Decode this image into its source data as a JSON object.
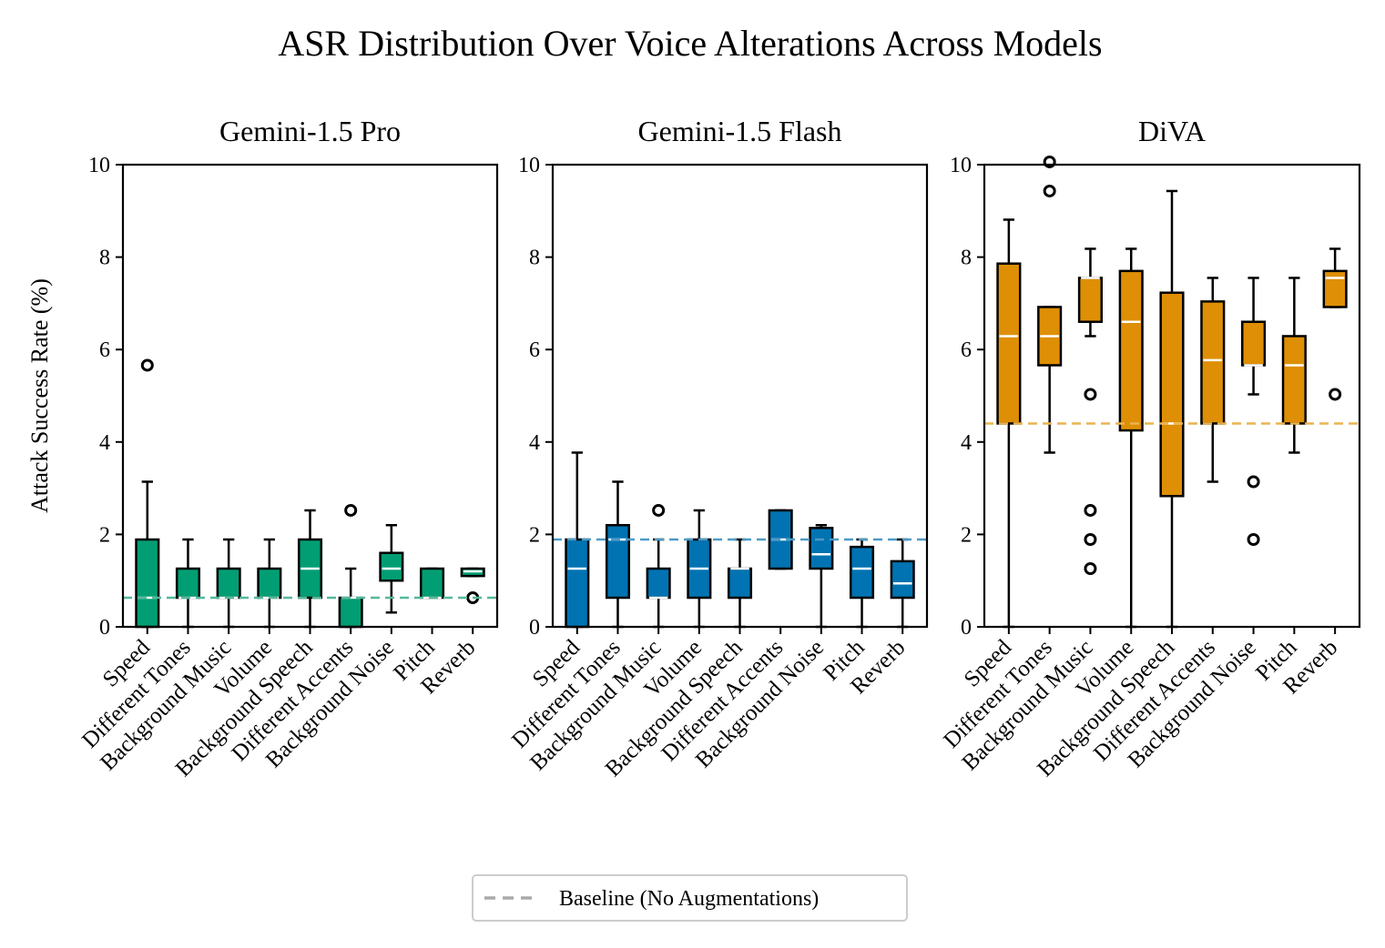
{
  "chart_data": {
    "type": "box",
    "title": "ASR Distribution Over Voice Alterations Across Models",
    "ylabel": "Attack Success Rate (%)",
    "ylim": [
      0,
      10
    ],
    "yticks": [
      0,
      2,
      4,
      6,
      8,
      10
    ],
    "categories": [
      "Speed",
      "Different Tones",
      "Background Music",
      "Volume",
      "Background Speech",
      "Different Accents",
      "Background Noise",
      "Pitch",
      "Reverb"
    ],
    "legend": {
      "label": "Baseline (No Augmentations)",
      "position": "bottom-center"
    },
    "panels": [
      {
        "title": "Gemini-1.5 Pro",
        "color": "#029e73",
        "baseline": 0.63,
        "baseline_color": "#55b89b",
        "boxes": [
          {
            "category": "Speed",
            "whislo": 0,
            "q1": 0,
            "med": 0.63,
            "q3": 1.89,
            "whishi": 3.14,
            "fliers": [
              5.66
            ]
          },
          {
            "category": "Different Tones",
            "whislo": 0,
            "q1": 0.63,
            "med": 0.63,
            "q3": 1.26,
            "whishi": 1.89,
            "fliers": []
          },
          {
            "category": "Background Music",
            "whislo": 0,
            "q1": 0.63,
            "med": 0.63,
            "q3": 1.26,
            "whishi": 1.89,
            "fliers": []
          },
          {
            "category": "Volume",
            "whislo": 0,
            "q1": 0.63,
            "med": 0.63,
            "q3": 1.26,
            "whishi": 1.89,
            "fliers": []
          },
          {
            "category": "Background Speech",
            "whislo": 0,
            "q1": 0.63,
            "med": 1.26,
            "q3": 1.89,
            "whishi": 2.52,
            "fliers": []
          },
          {
            "category": "Different Accents",
            "whislo": 0,
            "q1": 0,
            "med": 0.63,
            "q3": 0.63,
            "whishi": 1.26,
            "fliers": [
              2.52
            ]
          },
          {
            "category": "Background Noise",
            "whislo": 0.31,
            "q1": 1.0,
            "med": 1.26,
            "q3": 1.6,
            "whishi": 2.2,
            "fliers": []
          },
          {
            "category": "Pitch",
            "whislo": 0.63,
            "q1": 0.63,
            "med": 0.63,
            "q3": 1.26,
            "whishi": 1.26,
            "fliers": []
          },
          {
            "category": "Reverb",
            "whislo": 1.1,
            "q1": 1.1,
            "med": 1.2,
            "q3": 1.26,
            "whishi": 1.26,
            "fliers": [
              0.63
            ]
          }
        ]
      },
      {
        "title": "Gemini-1.5 Flash",
        "color": "#0173b2",
        "baseline": 1.89,
        "baseline_color": "#4d9ac7",
        "boxes": [
          {
            "category": "Speed",
            "whislo": 0,
            "q1": 0,
            "med": 1.26,
            "q3": 1.89,
            "whishi": 3.77,
            "fliers": []
          },
          {
            "category": "Different Tones",
            "whislo": 0,
            "q1": 0.63,
            "med": 1.89,
            "q3": 2.2,
            "whishi": 3.14,
            "fliers": []
          },
          {
            "category": "Background Music",
            "whislo": 0,
            "q1": 0.63,
            "med": 0.63,
            "q3": 1.26,
            "whishi": 1.89,
            "fliers": [
              2.52
            ]
          },
          {
            "category": "Volume",
            "whislo": 0,
            "q1": 0.63,
            "med": 1.26,
            "q3": 1.89,
            "whishi": 2.52,
            "fliers": []
          },
          {
            "category": "Background Speech",
            "whislo": 0,
            "q1": 0.63,
            "med": 1.26,
            "q3": 1.26,
            "whishi": 1.89,
            "fliers": []
          },
          {
            "category": "Different Accents",
            "whislo": 1.26,
            "q1": 1.26,
            "med": 1.89,
            "q3": 2.52,
            "whishi": 2.52,
            "fliers": []
          },
          {
            "category": "Background Noise",
            "whislo": 0,
            "q1": 1.26,
            "med": 1.57,
            "q3": 2.14,
            "whishi": 2.2,
            "fliers": []
          },
          {
            "category": "Pitch",
            "whislo": 0,
            "q1": 0.63,
            "med": 1.26,
            "q3": 1.73,
            "whishi": 1.89,
            "fliers": []
          },
          {
            "category": "Reverb",
            "whislo": 0,
            "q1": 0.63,
            "med": 0.94,
            "q3": 1.42,
            "whishi": 1.89,
            "fliers": []
          }
        ]
      },
      {
        "title": "DiVA",
        "color": "#de8f05",
        "baseline": 4.4,
        "baseline_color": "#eab450",
        "boxes": [
          {
            "category": "Speed",
            "whislo": 0,
            "q1": 4.4,
            "med": 6.29,
            "q3": 7.86,
            "whishi": 8.81,
            "fliers": []
          },
          {
            "category": "Different Tones",
            "whislo": 3.77,
            "q1": 5.66,
            "med": 6.29,
            "q3": 6.92,
            "whishi": 6.92,
            "fliers": [
              9.43,
              10.06
            ]
          },
          {
            "category": "Background Music",
            "whislo": 6.29,
            "q1": 6.6,
            "med": 7.55,
            "q3": 7.55,
            "whishi": 8.18,
            "fliers": [
              5.03,
              2.52,
              1.89,
              1.26
            ]
          },
          {
            "category": "Volume",
            "whislo": 0,
            "q1": 4.25,
            "med": 6.6,
            "q3": 7.7,
            "whishi": 8.18,
            "fliers": []
          },
          {
            "category": "Background Speech",
            "whislo": 0,
            "q1": 2.83,
            "med": 4.4,
            "q3": 7.23,
            "whishi": 9.43,
            "fliers": []
          },
          {
            "category": "Different Accents",
            "whislo": 3.14,
            "q1": 4.4,
            "med": 5.77,
            "q3": 7.04,
            "whishi": 7.55,
            "fliers": []
          },
          {
            "category": "Background Noise",
            "whislo": 5.03,
            "q1": 5.66,
            "med": 5.66,
            "q3": 6.6,
            "whishi": 7.55,
            "fliers": [
              3.14,
              1.89
            ]
          },
          {
            "category": "Pitch",
            "whislo": 3.77,
            "q1": 4.4,
            "med": 5.66,
            "q3": 6.29,
            "whishi": 7.55,
            "fliers": []
          },
          {
            "category": "Reverb",
            "whislo": 6.92,
            "q1": 6.92,
            "med": 7.55,
            "q3": 7.7,
            "whishi": 8.18,
            "fliers": [
              5.03
            ]
          }
        ]
      }
    ]
  }
}
